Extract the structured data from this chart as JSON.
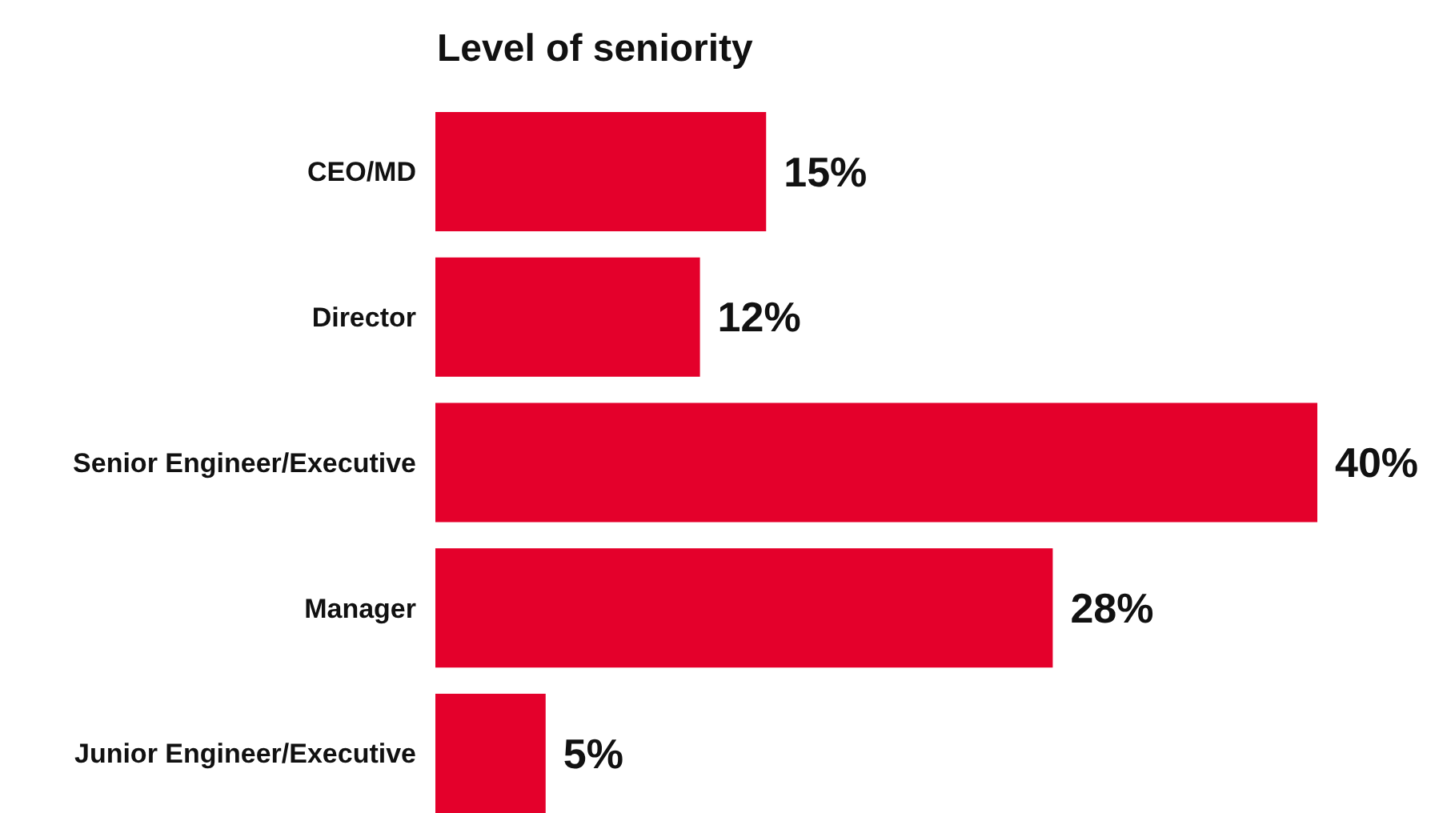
{
  "chart_data": {
    "type": "bar",
    "orientation": "horizontal",
    "title": "Level of seniority",
    "categories": [
      "CEO/MD",
      "Director",
      "Senior Engineer/Executive",
      "Manager",
      "Junior Engineer/Executive"
    ],
    "values": [
      15,
      12,
      40,
      28,
      5
    ],
    "value_labels": [
      "15%",
      "12%",
      "40%",
      "28%",
      "5%"
    ],
    "color": "#e4002b"
  }
}
